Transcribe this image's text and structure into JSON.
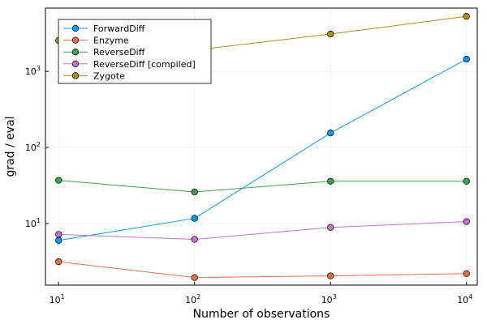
{
  "chart_data": {
    "type": "line",
    "title": "",
    "xlabel": "Number of observations",
    "ylabel": "grad / eval",
    "x_scale": "log10",
    "y_scale": "log10",
    "xlim": [
      8,
      12000
    ],
    "ylim": [
      1.55,
      6800
    ],
    "grid": true,
    "legend_position": "top-left",
    "x_ticks": [
      {
        "value": 10,
        "mantissa": "10",
        "exp": "1"
      },
      {
        "value": 100,
        "mantissa": "10",
        "exp": "2"
      },
      {
        "value": 1000,
        "mantissa": "10",
        "exp": "3"
      },
      {
        "value": 10000,
        "mantissa": "10",
        "exp": "4"
      }
    ],
    "y_ticks": [
      {
        "value": 10,
        "mantissa": "10",
        "exp": "1"
      },
      {
        "value": 100,
        "mantissa": "10",
        "exp": "2"
      },
      {
        "value": 1000,
        "mantissa": "10",
        "exp": "3"
      }
    ],
    "x": [
      10,
      100,
      1000,
      10000
    ],
    "series": [
      {
        "name": "ForwardDiff",
        "color": "#009af9",
        "values": [
          6.0,
          11.7,
          155,
          1450
        ]
      },
      {
        "name": "Enzyme",
        "color": "#e26f46",
        "values": [
          3.15,
          1.95,
          2.05,
          2.2
        ]
      },
      {
        "name": "ReverseDiff",
        "color": "#3da44d",
        "values": [
          37,
          26,
          36,
          36
        ]
      },
      {
        "name": "ReverseDiff [compiled]",
        "color": "#c271d2",
        "values": [
          7.2,
          6.2,
          8.9,
          10.6
        ]
      },
      {
        "name": "Zygote",
        "color": "#ac8e18",
        "values": [
          2550,
          1900,
          3100,
          5300
        ]
      }
    ]
  }
}
